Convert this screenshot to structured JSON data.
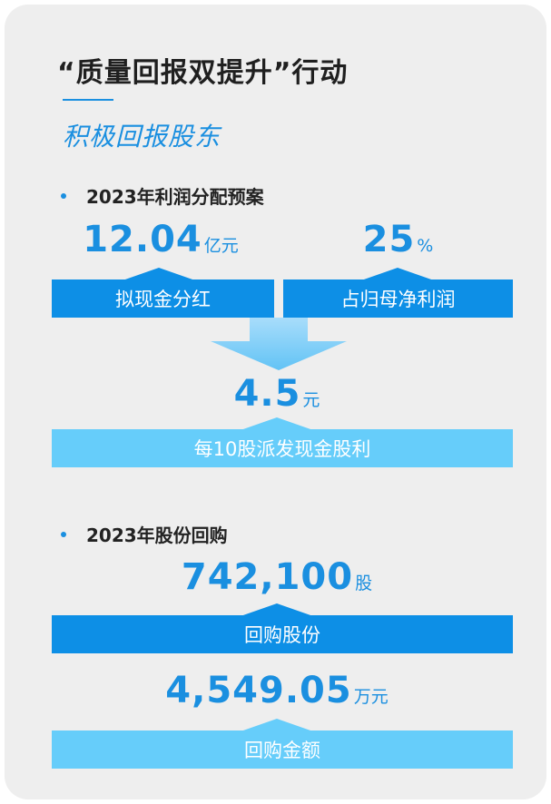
{
  "header": {
    "title": "“质量回报双提升”行动",
    "subtitle": "积极回报股东"
  },
  "profit_plan": {
    "heading": "2023年利润分配预案",
    "dividend_amount": {
      "value": "12.04",
      "unit": "亿元",
      "label": "拟现金分红"
    },
    "payout_ratio": {
      "value": "25",
      "unit": "%",
      "label": "占归母净利润"
    },
    "per_share": {
      "value": "4.5",
      "unit": "元",
      "label": "每10股派发现金股利"
    }
  },
  "buyback": {
    "heading": "2023年股份回购",
    "shares": {
      "value": "742,100",
      "unit": "股",
      "label": "回购股份"
    },
    "amount": {
      "value": "4,549.05",
      "unit": "万元",
      "label": "回购金额"
    }
  },
  "colors": {
    "accent": "#1a8fe0",
    "bar_dark": "#0d8fe6",
    "bar_light": "#66cdfa",
    "card_bg": "#eeeeee"
  }
}
